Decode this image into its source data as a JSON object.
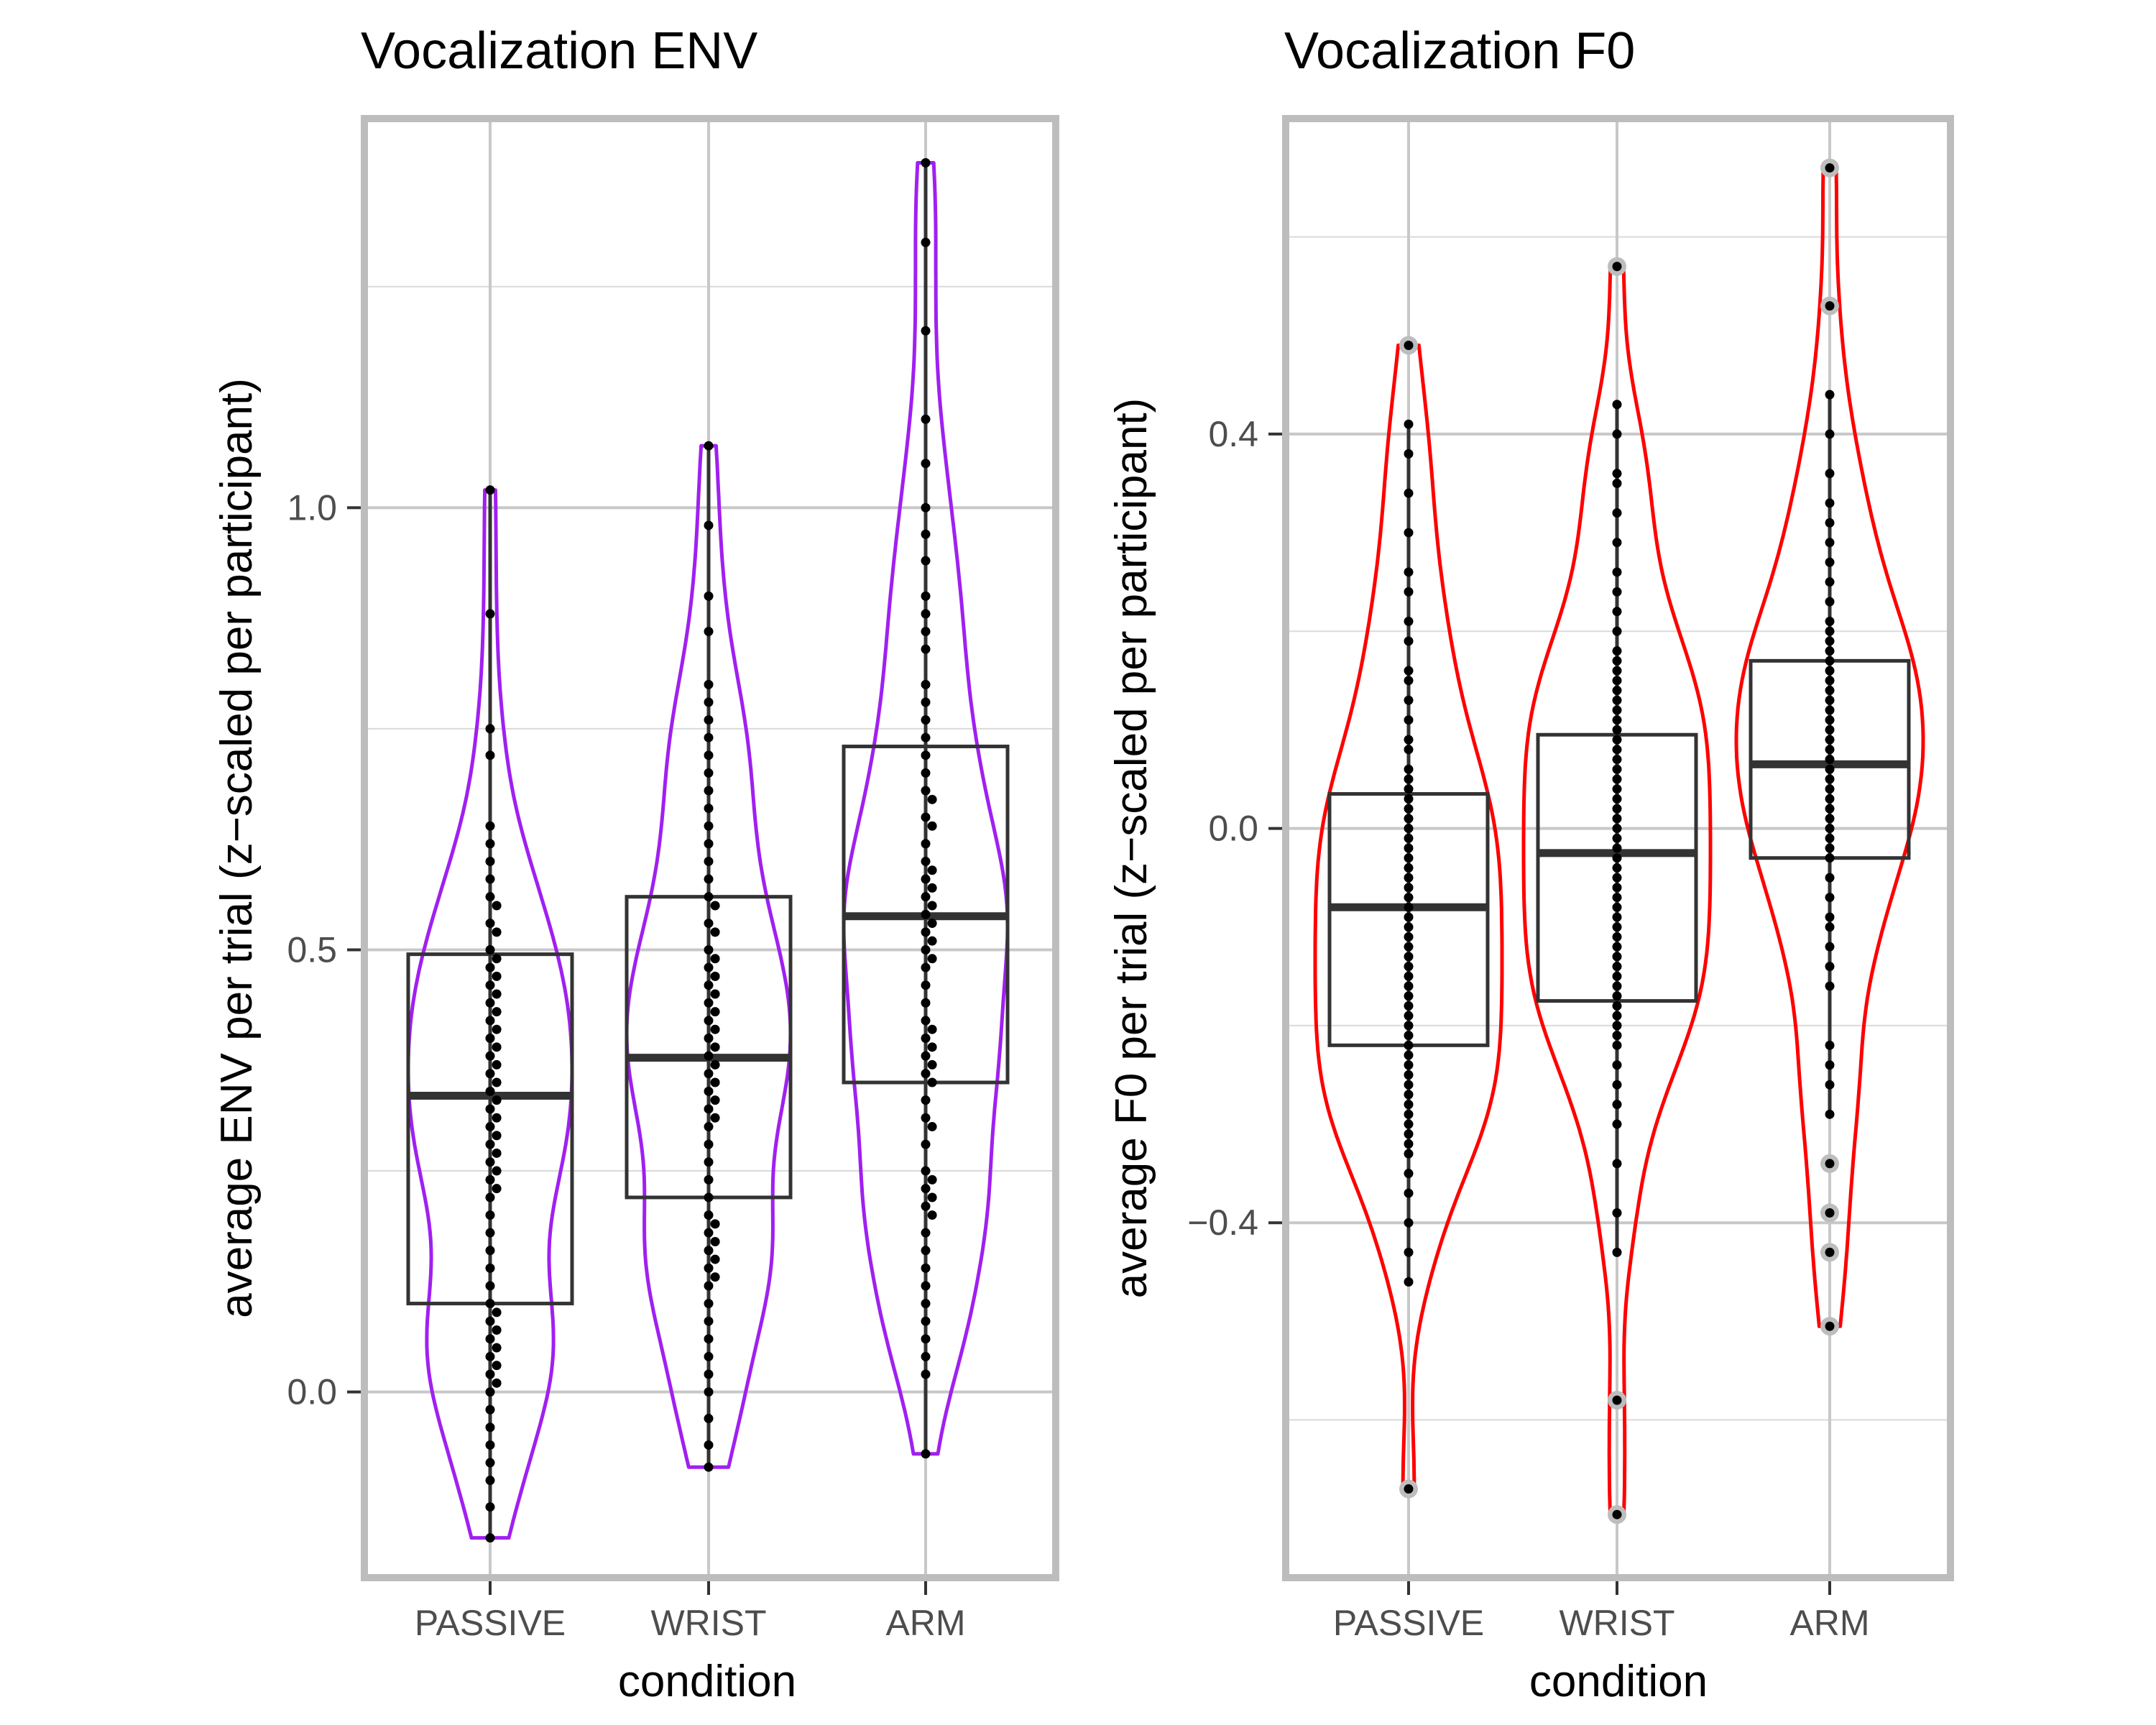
{
  "chart_data": [
    {
      "type": "violin",
      "title": "Vocalization ENV",
      "xlabel": "condition",
      "ylabel": "average ENV per trial (z−scaled per participant)",
      "categories": [
        "PASSIVE",
        "WRIST",
        "ARM"
      ],
      "ylim": [
        -0.21,
        1.44
      ],
      "yticks": [
        0.0,
        0.5,
        1.0
      ],
      "ytick_labels": [
        "0.0",
        "0.5",
        "1.0"
      ],
      "violin_color": "#a020f0",
      "grid": true,
      "groups": [
        {
          "name": "PASSIVE",
          "box": {
            "q1": 0.1,
            "median": 0.335,
            "q3": 0.495,
            "lower": -0.165,
            "upper": 1.02
          },
          "violin_range": [
            -0.165,
            1.02
          ],
          "points": [
            1.02,
            0.88,
            0.75,
            0.72,
            0.64,
            0.62,
            0.6,
            0.58,
            0.56,
            0.55,
            0.53,
            0.52,
            0.5,
            0.49,
            0.48,
            0.47,
            0.46,
            0.45,
            0.44,
            0.43,
            0.42,
            0.41,
            0.4,
            0.39,
            0.38,
            0.37,
            0.36,
            0.35,
            0.34,
            0.33,
            0.32,
            0.31,
            0.3,
            0.29,
            0.28,
            0.27,
            0.26,
            0.25,
            0.24,
            0.23,
            0.22,
            0.2,
            0.18,
            0.16,
            0.14,
            0.12,
            0.1,
            0.09,
            0.08,
            0.07,
            0.06,
            0.05,
            0.04,
            0.03,
            0.02,
            0.01,
            0.0,
            -0.02,
            -0.04,
            -0.06,
            -0.08,
            -0.1,
            -0.13,
            -0.165
          ]
        },
        {
          "name": "WRIST",
          "box": {
            "q1": 0.22,
            "median": 0.378,
            "q3": 0.56,
            "lower": -0.085,
            "upper": 1.07
          },
          "violin_range": [
            -0.085,
            1.07
          ],
          "points": [
            1.07,
            0.98,
            0.9,
            0.86,
            0.8,
            0.78,
            0.76,
            0.74,
            0.72,
            0.7,
            0.68,
            0.66,
            0.64,
            0.62,
            0.6,
            0.58,
            0.56,
            0.55,
            0.53,
            0.52,
            0.5,
            0.49,
            0.48,
            0.47,
            0.46,
            0.45,
            0.44,
            0.43,
            0.42,
            0.41,
            0.4,
            0.39,
            0.38,
            0.37,
            0.36,
            0.35,
            0.34,
            0.33,
            0.32,
            0.31,
            0.3,
            0.28,
            0.26,
            0.24,
            0.22,
            0.2,
            0.19,
            0.18,
            0.17,
            0.16,
            0.15,
            0.14,
            0.13,
            0.12,
            0.1,
            0.08,
            0.06,
            0.04,
            0.02,
            0.0,
            -0.03,
            -0.06,
            -0.085
          ]
        },
        {
          "name": "ARM",
          "box": {
            "q1": 0.35,
            "median": 0.538,
            "q3": 0.73,
            "lower": -0.07,
            "upper": 1.39
          },
          "violin_range": [
            -0.07,
            1.39
          ],
          "points": [
            1.39,
            1.3,
            1.2,
            1.1,
            1.05,
            1.0,
            0.97,
            0.94,
            0.9,
            0.88,
            0.86,
            0.84,
            0.8,
            0.78,
            0.76,
            0.74,
            0.72,
            0.7,
            0.68,
            0.67,
            0.65,
            0.64,
            0.62,
            0.6,
            0.59,
            0.58,
            0.57,
            0.56,
            0.55,
            0.54,
            0.53,
            0.52,
            0.51,
            0.5,
            0.49,
            0.48,
            0.46,
            0.44,
            0.42,
            0.41,
            0.4,
            0.39,
            0.38,
            0.37,
            0.36,
            0.35,
            0.33,
            0.31,
            0.3,
            0.28,
            0.25,
            0.24,
            0.23,
            0.22,
            0.21,
            0.2,
            0.18,
            0.16,
            0.14,
            0.12,
            0.1,
            0.08,
            0.06,
            0.04,
            0.02,
            -0.07
          ]
        }
      ]
    },
    {
      "type": "violin",
      "title": "Vocalization F0",
      "xlabel": "condition",
      "ylabel": "average F0 per trial (z−scaled per participant)",
      "categories": [
        "PASSIVE",
        "WRIST",
        "ARM"
      ],
      "ylim": [
        -0.76,
        0.72
      ],
      "yticks": [
        -0.4,
        0.0,
        0.4
      ],
      "ytick_labels": [
        "−0.4",
        "0.0",
        "0.4"
      ],
      "violin_color": "#ff0000",
      "grid": true,
      "groups": [
        {
          "name": "PASSIVE",
          "box": {
            "q1": -0.22,
            "median": -0.08,
            "q3": 0.035,
            "lower": -0.46,
            "upper": 0.41
          },
          "violin_range": [
            -0.67,
            0.49
          ],
          "outliers": [
            0.49,
            -0.67
          ],
          "points": [
            0.41,
            0.38,
            0.34,
            0.3,
            0.26,
            0.24,
            0.21,
            0.19,
            0.16,
            0.15,
            0.13,
            0.11,
            0.09,
            0.08,
            0.06,
            0.05,
            0.04,
            0.03,
            0.02,
            0.01,
            0.0,
            -0.01,
            -0.02,
            -0.03,
            -0.04,
            -0.05,
            -0.06,
            -0.07,
            -0.08,
            -0.09,
            -0.1,
            -0.11,
            -0.12,
            -0.13,
            -0.14,
            -0.15,
            -0.16,
            -0.17,
            -0.18,
            -0.19,
            -0.2,
            -0.21,
            -0.22,
            -0.23,
            -0.24,
            -0.25,
            -0.26,
            -0.27,
            -0.28,
            -0.29,
            -0.3,
            -0.31,
            -0.32,
            -0.33,
            -0.35,
            -0.37,
            -0.4,
            -0.43,
            -0.46
          ]
        },
        {
          "name": "WRIST",
          "box": {
            "q1": -0.175,
            "median": -0.025,
            "q3": 0.095,
            "lower": -0.43,
            "upper": 0.43
          },
          "violin_range": [
            -0.696,
            0.57
          ],
          "outliers": [
            0.57,
            -0.58,
            -0.696
          ],
          "points": [
            0.43,
            0.4,
            0.36,
            0.35,
            0.32,
            0.29,
            0.26,
            0.24,
            0.22,
            0.2,
            0.18,
            0.17,
            0.16,
            0.15,
            0.14,
            0.13,
            0.12,
            0.11,
            0.1,
            0.09,
            0.08,
            0.07,
            0.06,
            0.05,
            0.04,
            0.03,
            0.02,
            0.01,
            0.0,
            -0.01,
            -0.02,
            -0.03,
            -0.04,
            -0.05,
            -0.06,
            -0.07,
            -0.08,
            -0.09,
            -0.1,
            -0.11,
            -0.12,
            -0.13,
            -0.14,
            -0.15,
            -0.16,
            -0.17,
            -0.18,
            -0.19,
            -0.2,
            -0.21,
            -0.22,
            -0.24,
            -0.26,
            -0.28,
            -0.3,
            -0.34,
            -0.39,
            -0.43
          ]
        },
        {
          "name": "ARM",
          "box": {
            "q1": -0.03,
            "median": 0.065,
            "q3": 0.17,
            "lower": -0.29,
            "upper": 0.44
          },
          "violin_range": [
            -0.505,
            0.67
          ],
          "outliers": [
            0.67,
            0.53,
            -0.34,
            -0.39,
            -0.43,
            -0.505
          ],
          "points": [
            0.44,
            0.4,
            0.36,
            0.33,
            0.31,
            0.29,
            0.27,
            0.25,
            0.23,
            0.21,
            0.2,
            0.19,
            0.18,
            0.17,
            0.16,
            0.15,
            0.14,
            0.13,
            0.12,
            0.11,
            0.1,
            0.09,
            0.08,
            0.07,
            0.06,
            0.05,
            0.04,
            0.03,
            0.02,
            0.01,
            0.0,
            -0.01,
            -0.02,
            -0.03,
            -0.05,
            -0.07,
            -0.09,
            -0.1,
            -0.12,
            -0.14,
            -0.16,
            -0.22,
            -0.24,
            -0.26,
            -0.29
          ]
        }
      ]
    }
  ]
}
